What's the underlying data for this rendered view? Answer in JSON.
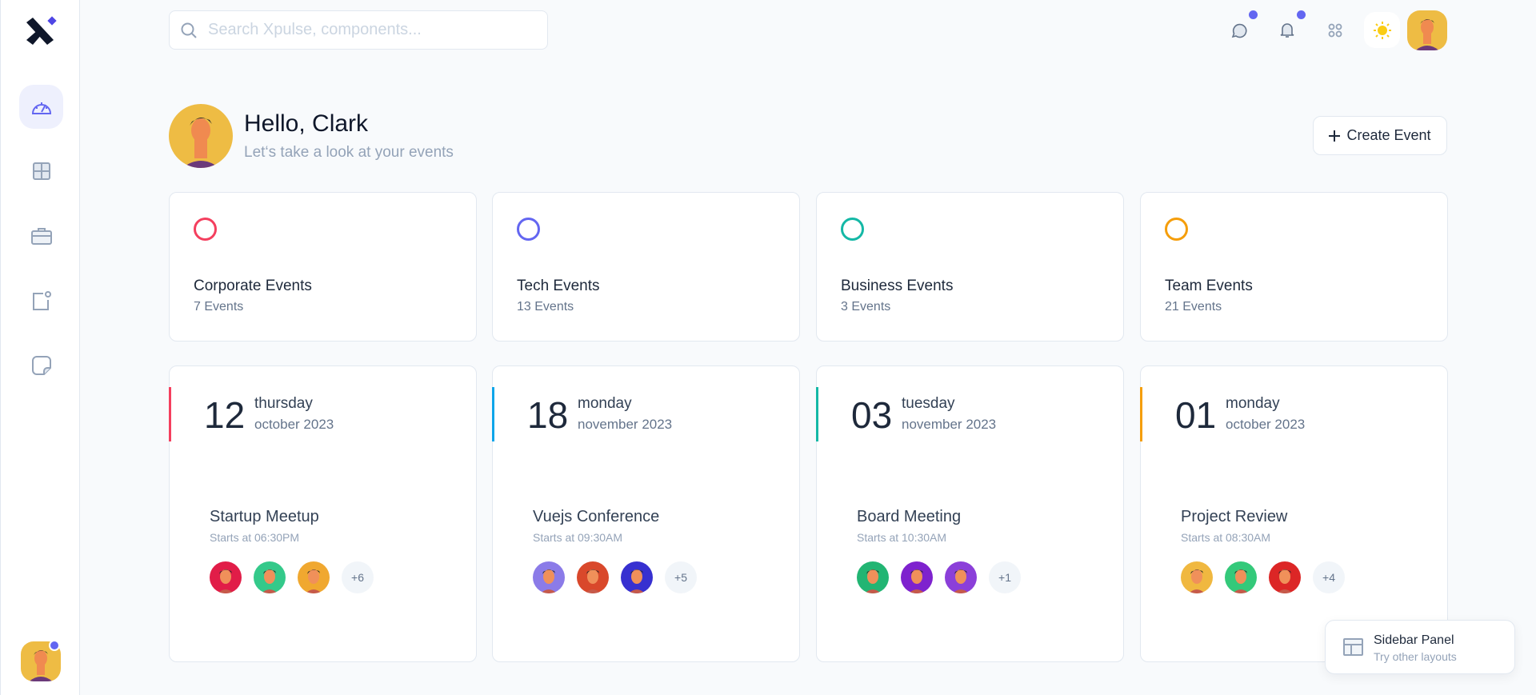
{
  "search": {
    "placeholder": "Search Xpulse, components..."
  },
  "colors": {
    "accent": "#6366f1",
    "red": "#f43f5e",
    "blue": "#6366f1",
    "teal": "#14b8a6",
    "orange": "#f59e0b",
    "sky": "#0ea5e9"
  },
  "sidebar": {
    "items": [
      {
        "icon": "dashboard-gauge-icon",
        "active": true
      },
      {
        "icon": "grid-icon"
      },
      {
        "icon": "briefcase-icon"
      },
      {
        "icon": "notification-square-icon"
      },
      {
        "icon": "sticky-note-icon"
      }
    ]
  },
  "header": {
    "icons": [
      "chat-icon",
      "bell-icon",
      "apps-icon",
      "sun-icon"
    ]
  },
  "greeting": {
    "title": "Hello, Clark",
    "subtitle": "Let‘s take a look at your events"
  },
  "create_button": {
    "label": "Create Event"
  },
  "stats": [
    {
      "title": "Corporate Events",
      "count": "7 Events",
      "color": "#f43f5e"
    },
    {
      "title": "Tech Events",
      "count": "13 Events",
      "color": "#6366f1"
    },
    {
      "title": "Business Events",
      "count": "3 Events",
      "color": "#14b8a6"
    },
    {
      "title": "Team Events",
      "count": "21 Events",
      "color": "#f59e0b"
    }
  ],
  "events": [
    {
      "day_num": "12",
      "weekday": "thursday",
      "month": "october 2023",
      "title": "Startup Meetup",
      "start": "Starts at 06:30PM",
      "more": "+6",
      "color": "#f43f5e",
      "avatars": [
        "#e11d48",
        "#34c98a",
        "#f0a830"
      ]
    },
    {
      "day_num": "18",
      "weekday": "monday",
      "month": "november 2023",
      "title": "Vuejs Conference",
      "start": "Starts at 09:30AM",
      "more": "+5",
      "color": "#0ea5e9",
      "avatars": [
        "#8b7be8",
        "#d9482b",
        "#3730d0"
      ]
    },
    {
      "day_num": "03",
      "weekday": "tuesday",
      "month": "november 2023",
      "title": "Board Meeting",
      "start": "Starts at 10:30AM",
      "more": "+1",
      "color": "#14b8a6",
      "avatars": [
        "#22b573",
        "#7e22ce",
        "#8b3fd9"
      ]
    },
    {
      "day_num": "01",
      "weekday": "monday",
      "month": "october 2023",
      "title": "Project Review",
      "start": "Starts at 08:30AM",
      "more": "+4",
      "color": "#f59e0b",
      "avatars": [
        "#f0b840",
        "#34c97a",
        "#dc2626"
      ]
    }
  ],
  "panel": {
    "title": "Sidebar Panel",
    "subtitle": "Try other layouts"
  }
}
